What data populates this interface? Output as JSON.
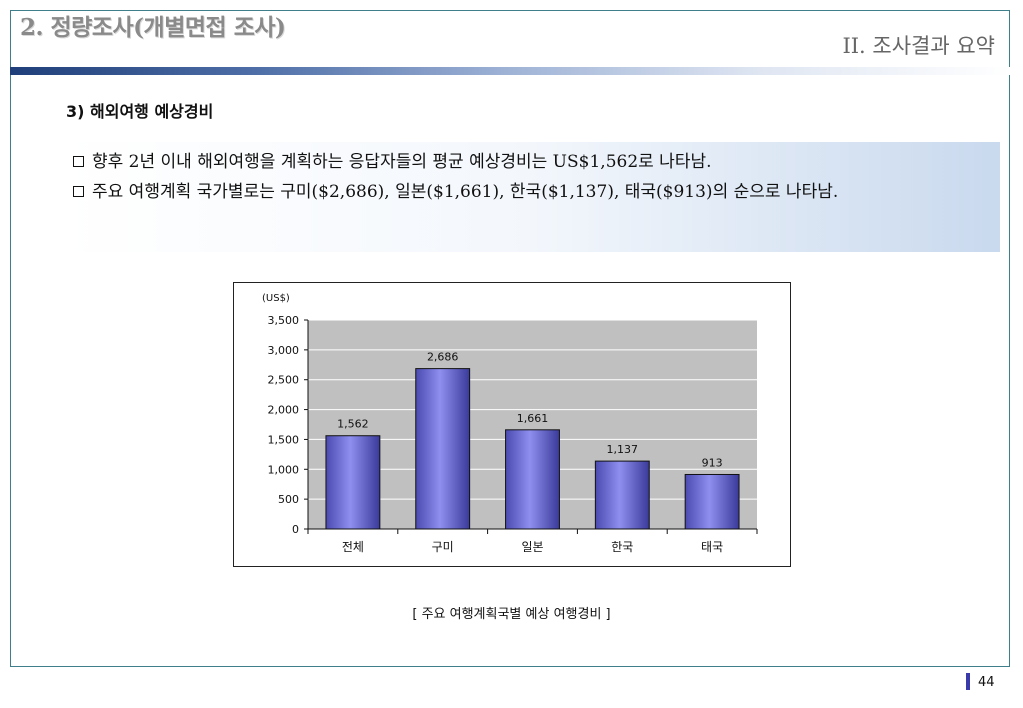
{
  "header": {
    "title": "2. 정량조사(개별면접 조사)",
    "section": "II. 조사결과 요약"
  },
  "section_heading": "3) 해외여행 예상경비",
  "summary": {
    "bullet1": "향후 2년 이내 해외여행을 계획하는 응답자들의  평균 예상경비는 US$1,562로 나타남.",
    "bullet2": "주요 여행계획 국가별로는 구미($2,686), 일본($1,661), 한국($1,137), 태국($913)의 순으로 나타남."
  },
  "chart_data": {
    "type": "bar",
    "unit_label": "(US$)",
    "categories": [
      "전체",
      "구미",
      "일본",
      "한국",
      "태국"
    ],
    "values": [
      1562,
      2686,
      1661,
      1137,
      913
    ],
    "data_labels": [
      "1,562",
      "2,686",
      "1,661",
      "1,137",
      "913"
    ],
    "ylim": [
      0,
      3500
    ],
    "yticks": [
      "0",
      "500",
      "1,000",
      "1,500",
      "2,000",
      "2,500",
      "3,000",
      "3,500"
    ],
    "ytick_values": [
      0,
      500,
      1000,
      1500,
      2000,
      2500,
      3000,
      3500
    ],
    "grid": true,
    "plot_background": "#c0c0c0",
    "bar_color": "#8f8ff0"
  },
  "caption": "[ 주요 여행계획국별 예상 여행경비 ]",
  "page": "44"
}
